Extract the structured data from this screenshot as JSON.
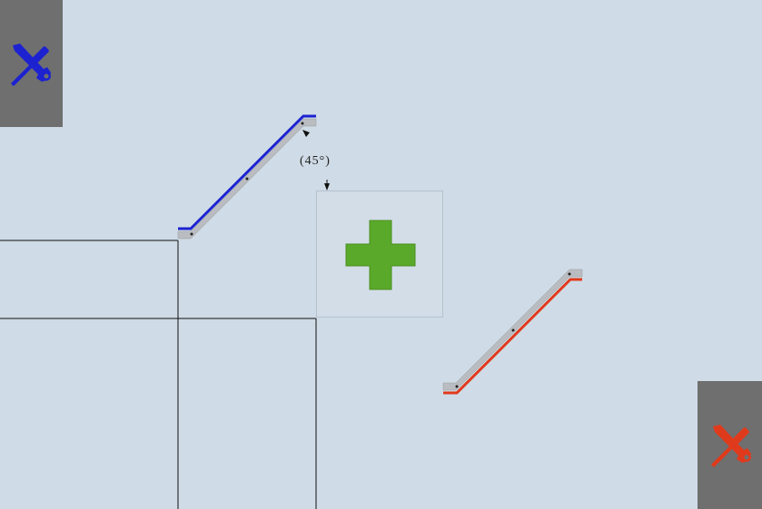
{
  "angle_indicator": {
    "label": "(45°)"
  },
  "tools": {
    "blue": {
      "icon": "wrench-screwdriver-icon",
      "color": "#1d22d0"
    },
    "red": {
      "icon": "wrench-screwdriver-icon",
      "color": "#e03a1c"
    }
  },
  "add_tile": {
    "icon": "plus-icon",
    "color": "#5aa92a"
  },
  "colors": {
    "background": "#cfdbe6",
    "panel": "#6f6f6f",
    "railing_body": "#b9bcc0",
    "blue_edge": "#1d22d0",
    "red_edge": "#e03a1c",
    "grid_line": "#111111"
  }
}
